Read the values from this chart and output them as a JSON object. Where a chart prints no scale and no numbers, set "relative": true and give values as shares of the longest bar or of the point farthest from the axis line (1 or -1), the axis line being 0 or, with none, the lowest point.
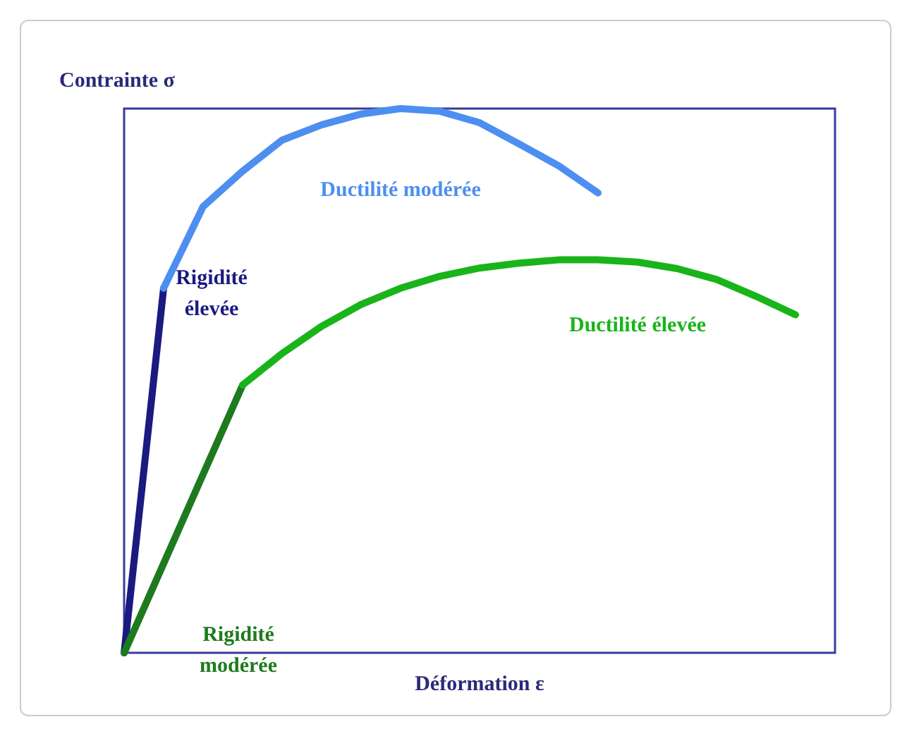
{
  "chart_data": {
    "type": "line",
    "relative": true,
    "xlabel": "Déformation ε",
    "ylabel": "Contrainte σ",
    "legend": false,
    "marker": "none",
    "line_style": "solid",
    "categories": [
      null,
      null,
      null,
      null,
      null,
      null,
      null,
      null,
      null,
      null,
      null,
      null,
      null,
      null,
      null,
      null,
      null,
      null,
      null
    ],
    "series": [
      {
        "name": "Rigidité\nélevée",
        "color": "#1a1a80",
        "values": [
          0,
          0.67,
          null,
          null,
          null,
          null,
          null,
          null,
          null,
          null,
          null,
          null,
          null,
          null,
          null,
          null,
          null,
          null,
          null
        ]
      },
      {
        "name": "Ductilité modérée",
        "color": "#4d8ff0",
        "values": [
          null,
          0.67,
          0.82,
          0.885,
          0.942,
          0.97,
          0.99,
          1,
          0.995,
          0.974,
          0.935,
          0.895,
          0.845,
          null,
          null,
          null,
          null,
          null,
          null
        ]
      },
      {
        "name": "Rigidité\nmodérée",
        "color": "#1e7a1e",
        "values": [
          0,
          0.164,
          0.328,
          0.492,
          null,
          null,
          null,
          null,
          null,
          null,
          null,
          null,
          null,
          null,
          null,
          null,
          null,
          null,
          null
        ]
      },
      {
        "name": "Ductilité élevée",
        "color": "#19b419",
        "values": [
          null,
          null,
          null,
          0.492,
          0.55,
          0.6,
          0.64,
          0.67,
          0.692,
          0.707,
          0.716,
          0.722,
          0.722,
          0.718,
          0.706,
          0.686,
          0.655,
          0.621,
          null
        ]
      }
    ]
  }
}
